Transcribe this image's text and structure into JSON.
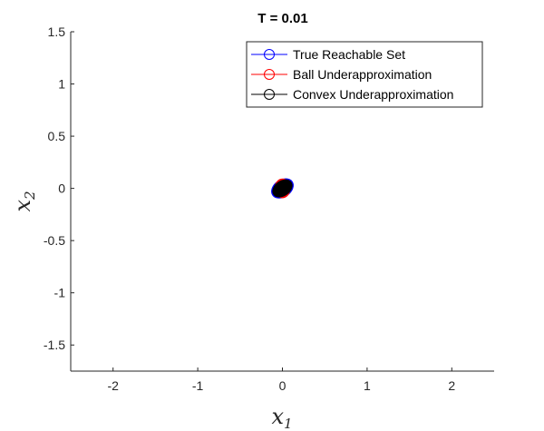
{
  "chart_data": {
    "type": "scatter",
    "title": "T = 0.01",
    "xlabel": {
      "base": "x",
      "sub": "1"
    },
    "ylabel": {
      "base": "x",
      "sub": "2"
    },
    "xlim": [
      -2.5,
      2.5
    ],
    "ylim": [
      -1.75,
      1.5
    ],
    "xticks": [
      -2,
      -1,
      0,
      1,
      2
    ],
    "xtick_labels": [
      "-2",
      "-1",
      "0",
      "1",
      "2"
    ],
    "yticks": [
      -1.5,
      -1,
      -0.5,
      0,
      0.5,
      1,
      1.5
    ],
    "ytick_labels": [
      "-1.5",
      "-1",
      "-0.5",
      "0",
      "0.5",
      "1",
      "1.5"
    ],
    "grid": false,
    "legend_position": "top-right",
    "series": [
      {
        "name": "True Reachable Set",
        "color": "#0000ff",
        "center": [
          0.0,
          0.0
        ],
        "radii": [
          0.14,
          0.08
        ],
        "angle_deg": 35
      },
      {
        "name": "Ball Underapproximation",
        "color": "#ff0000",
        "center": [
          0.0,
          0.0
        ],
        "radii": [
          0.09,
          0.09
        ],
        "angle_deg": 0
      },
      {
        "name": "Convex Underapproximation",
        "color": "#000000",
        "center": [
          0.0,
          0.0
        ],
        "radii": [
          0.125,
          0.07
        ],
        "angle_deg": 35
      }
    ]
  }
}
